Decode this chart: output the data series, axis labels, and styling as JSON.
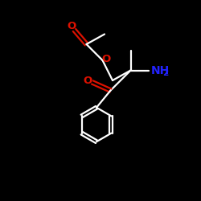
{
  "bg_color": "#000000",
  "bond_color": "#ffffff",
  "oxygen_color": "#dd1100",
  "nitrogen_color": "#2222ff",
  "fig_width": 2.5,
  "fig_height": 2.5,
  "dpi": 100,
  "NH2_label": "NH",
  "NH2_sub": "2",
  "O_label": "O"
}
